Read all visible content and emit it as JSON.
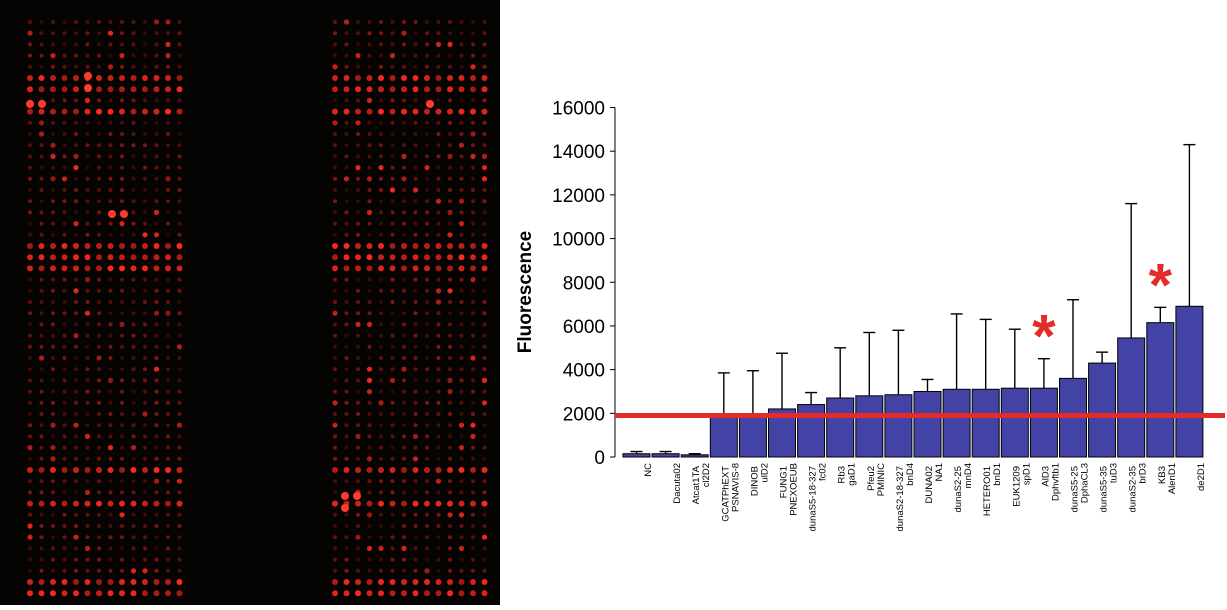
{
  "microarray": {
    "spot_color": "#ff2a1e",
    "bright_color": "#ff3b2e",
    "background": "#060303"
  },
  "chart_data": {
    "type": "bar",
    "ylabel": "Fluorescence",
    "xlabel": "",
    "ylim": [
      0,
      16000
    ],
    "yticks": [
      0,
      2000,
      4000,
      6000,
      8000,
      10000,
      12000,
      14000,
      16000
    ],
    "bar_color": "#4343a6",
    "categories": [
      "NC",
      "Dacuta02",
      "cl2D2 Atcat1TA",
      "PSNAVIS-8 GCATPhEXT",
      "ulD2 DINOB",
      "PNEXOEUB FUNG1",
      "fc02 dunaS5-18-327",
      "gaD1 Rb3",
      "PMINIC Pfeu2",
      "bnD4 dunaS2-18-327",
      "NA1 DUNA02",
      "mnD4 dunaS2-25",
      "bnD1 HETERO01",
      "spD1 EUK1209",
      "Dphvftb1 AlD3",
      "DphaCL3 dunaS5-25",
      "tuD3 dunaS5-35",
      "brD3 dunaS2-35",
      "AlenD1 KB3",
      "de2D1"
    ],
    "tick_labels": [
      [
        "NC"
      ],
      [
        "Dacuta02"
      ],
      [
        "cl2D2",
        "Atcat1TA"
      ],
      [
        "PSNAVIS-8",
        "GCATPhEXT"
      ],
      [
        "ulD2",
        "DINOB"
      ],
      [
        "PNEXOEUB",
        "FUNG1"
      ],
      [
        "fc02",
        "dunaS5-18-327"
      ],
      [
        "gaD1",
        "Rb3"
      ],
      [
        "PMINIC",
        "Pfeu2"
      ],
      [
        "bnD4",
        "dunaS2-18-327"
      ],
      [
        "NA1",
        "DUNA02"
      ],
      [
        "mnD4",
        "dunaS2-25"
      ],
      [
        "bnD1",
        "HETERO01"
      ],
      [
        "spD1",
        "EUK1209"
      ],
      [
        "Dphvftb1",
        "AlD3"
      ],
      [
        "DphaCL3",
        "dunaS5-25"
      ],
      [
        "tuD3",
        "dunaS5-35"
      ],
      [
        "brD3",
        "dunaS2-35"
      ],
      [
        "AlenD1",
        "KB3"
      ],
      [
        "de2D1"
      ]
    ],
    "values": [
      150,
      150,
      100,
      1950,
      1950,
      2200,
      2400,
      2700,
      2800,
      2850,
      3000,
      3100,
      3100,
      3150,
      3150,
      3600,
      4300,
      5450,
      6150,
      6900
    ],
    "error_upper": [
      250,
      250,
      150,
      3850,
      3950,
      4750,
      2950,
      5000,
      5700,
      5800,
      3550,
      6550,
      6300,
      5850,
      4500,
      7200,
      4800,
      11600,
      6850,
      14300
    ],
    "threshold": 1900,
    "threshold_color": "#e52a2a",
    "significance_markers": [
      {
        "after_category": "Dphvftb1 AlD3",
        "text": "*"
      },
      {
        "after_category": "AlenD1 KB3",
        "text": "*"
      }
    ],
    "marker_color": "#e52a2a",
    "grid": false,
    "legend": "none"
  }
}
